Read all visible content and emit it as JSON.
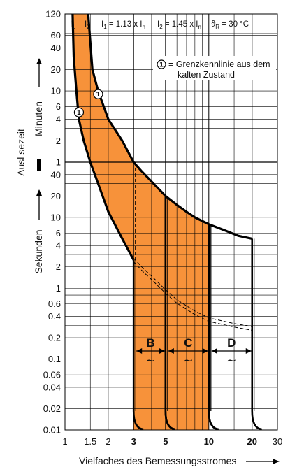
{
  "chart_data": {
    "type": "line",
    "xscale": "log",
    "xlim": [
      1,
      30
    ],
    "xlabel": "Vielfaches des Bemessungsstromes",
    "x_ticks": [
      "1",
      "1.5",
      "2",
      "3",
      "5",
      "10",
      "20",
      "30"
    ],
    "x_bold_ticks": [
      "3",
      "5",
      "10",
      "20"
    ],
    "ylabel_main": "Ausl sezeit",
    "ylabel_minutes": "Minuten",
    "ylabel_seconds": "Sekunden",
    "y_ticks_minutes": [
      "120",
      "60",
      "40",
      "20",
      "10",
      "6",
      "4",
      "2",
      "1"
    ],
    "y_ticks_seconds": [
      "40",
      "20",
      "10",
      "6",
      "4",
      "2",
      "1",
      "0.6",
      "0.4",
      "0.2",
      "0.1",
      "0.06",
      "0.04",
      "0.02",
      "0.01"
    ],
    "header": {
      "i1": "I",
      "i1_sub": "1",
      "i2": "I",
      "i2_sub": "2",
      "eq1": "I",
      "eq1_sub": "1",
      "eq1_rhs": " = 1.13 x I",
      "eq1_rhs_sub": "n",
      "eq2": "I",
      "eq2_sub": "2",
      "eq2_rhs": " = 1.45 x I",
      "eq2_rhs_sub": "n",
      "temp": "ϑ",
      "temp_sub": "R",
      "temp_rhs": " = 30 °C"
    },
    "annotation": {
      "marker": "1",
      "line1": "= Grenzkennlinie aus dem",
      "line2": "kalten Zustand"
    },
    "bands": [
      {
        "name": "B",
        "x_from": 3,
        "x_to": 5,
        "symbol": "~",
        "fill": "#F7923A"
      },
      {
        "name": "C",
        "x_from": 5,
        "x_to": 10,
        "symbol": "~",
        "fill": "#F7923A"
      },
      {
        "name": "D",
        "x_from": 10,
        "x_to": 20,
        "symbol": "~",
        "fill": "#FFFFFF"
      }
    ],
    "series": [
      {
        "role": "upper_limit",
        "points": [
          [
            1.45,
            7200
          ],
          [
            1.55,
            1200
          ],
          [
            1.7,
            600
          ],
          [
            2.0,
            240
          ],
          [
            2.5,
            120
          ],
          [
            3.0,
            60
          ],
          [
            3.4,
            45
          ],
          [
            4.0,
            32
          ],
          [
            5.0,
            20
          ],
          [
            6.0,
            15
          ],
          [
            7.0,
            12
          ],
          [
            8.0,
            10
          ],
          [
            10.0,
            8
          ],
          [
            13.0,
            6.5
          ],
          [
            16.0,
            5.5
          ],
          [
            20.0,
            5
          ]
        ]
      },
      {
        "role": "lower_limit",
        "points": [
          [
            1.13,
            7200
          ],
          [
            1.15,
            1800
          ],
          [
            1.2,
            600
          ],
          [
            1.25,
            240
          ],
          [
            1.35,
            120
          ],
          [
            1.5,
            60
          ],
          [
            1.7,
            30
          ],
          [
            2.0,
            12
          ],
          [
            2.5,
            5
          ],
          [
            3.0,
            2.5
          ],
          [
            3.5,
            1.8
          ],
          [
            4.0,
            1.4
          ],
          [
            5.0,
            0.9
          ],
          [
            6.0,
            0.65
          ],
          [
            8.0,
            0.45
          ],
          [
            10.0,
            0.36
          ],
          [
            15.0,
            0.3
          ],
          [
            20.0,
            0.27
          ]
        ]
      }
    ],
    "markers": [
      {
        "label": "1",
        "x": 1.25,
        "y": 300
      },
      {
        "label": "1",
        "x": 1.7,
        "y": 540
      }
    ],
    "colors": {
      "fill": "#F7923A",
      "line": "#000000",
      "grid": "#000000"
    }
  }
}
